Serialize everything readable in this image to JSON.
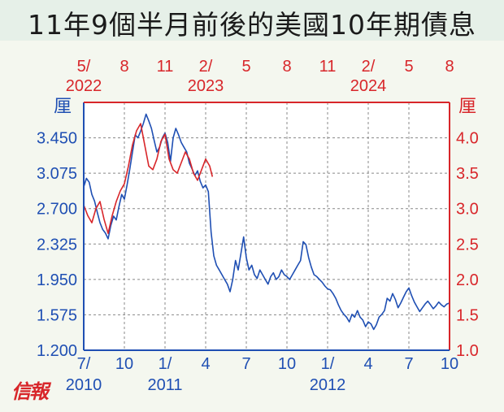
{
  "title": "11年9個半月前後的美國10年期債息",
  "logo_text": "信報",
  "colors": {
    "blue": "#1f4fb3",
    "red": "#d8262a",
    "grid": "#888888"
  },
  "chart_data": {
    "type": "line",
    "left_axis": {
      "unit_label": "厘",
      "ticks": [
        "3.450",
        "3.075",
        "2.700",
        "2.325",
        "1.950",
        "1.575",
        "1.200"
      ],
      "range": [
        1.2,
        3.825
      ]
    },
    "right_axis": {
      "unit_label": "厘",
      "ticks": [
        "4.0",
        "3.5",
        "3.0",
        "2.5",
        "2.0",
        "1.5",
        "1.0"
      ],
      "range": [
        1.0,
        4.5
      ]
    },
    "bottom_axis": {
      "ticks": [
        "7/",
        "10",
        "1/",
        "4",
        "7",
        "10",
        "1/",
        "4",
        "7",
        "10"
      ],
      "sublabels": [
        "2010",
        "2011",
        "2012"
      ]
    },
    "top_axis": {
      "ticks": [
        "5/",
        "8",
        "11",
        "2/",
        "5",
        "8",
        "11",
        "2/",
        "5",
        "8"
      ],
      "sublabels": [
        "2022",
        "2023",
        "2024"
      ]
    },
    "series": [
      {
        "color": "#1f4fb3",
        "axis": "left",
        "x": [
          0,
          0.2,
          0.4,
          0.6,
          0.8,
          1.0,
          1.2,
          1.4,
          1.6,
          1.8,
          2.0,
          2.2,
          2.4,
          2.6,
          2.8,
          3.0,
          3.2,
          3.4,
          3.6,
          3.8,
          4.0,
          4.2,
          4.4,
          4.6,
          4.8,
          5.0,
          5.2,
          5.4,
          5.6,
          5.8,
          6.0,
          6.2,
          6.4,
          6.6,
          6.8,
          7.0,
          7.2,
          7.4,
          7.6,
          7.8,
          8.0,
          8.2,
          8.4,
          8.6,
          8.8,
          9.0,
          9.2,
          9.4,
          9.6,
          9.8,
          10.0,
          10.2,
          10.4,
          10.6,
          10.8,
          11.0,
          11.2,
          11.4,
          11.6,
          11.8,
          12.0,
          12.2,
          12.4,
          12.6,
          12.8,
          13.0,
          13.2,
          13.4,
          13.6,
          13.8,
          14.0,
          14.2,
          14.4,
          14.6,
          14.8,
          15.0,
          15.2,
          15.4,
          15.6,
          15.8,
          16.0,
          16.2,
          16.4,
          16.6,
          16.8,
          17.0,
          17.2,
          17.4,
          17.6,
          17.8,
          18.0,
          18.2,
          18.4,
          18.6,
          18.8,
          19.0,
          19.2,
          19.4,
          19.6,
          19.8,
          20.0,
          20.2,
          20.4,
          20.6,
          20.8,
          21.0,
          21.2,
          21.4,
          21.6,
          21.8,
          22.0,
          22.2,
          22.4,
          22.6,
          22.8,
          23.0,
          23.2,
          23.4,
          23.6,
          23.8,
          24.0,
          24.2,
          24.4,
          24.6,
          24.8,
          25.0,
          25.2,
          25.4,
          25.6,
          25.8,
          26.0,
          26.2,
          26.4,
          26.6,
          26.8,
          27.0
        ],
        "y": [
          2.93,
          3.02,
          2.98,
          2.85,
          2.78,
          2.66,
          2.55,
          2.48,
          2.44,
          2.38,
          2.52,
          2.62,
          2.58,
          2.72,
          2.85,
          2.8,
          2.95,
          3.12,
          3.3,
          3.48,
          3.45,
          3.52,
          3.6,
          3.7,
          3.63,
          3.55,
          3.42,
          3.3,
          3.35,
          3.45,
          3.5,
          3.4,
          3.2,
          3.45,
          3.55,
          3.48,
          3.4,
          3.35,
          3.3,
          3.18,
          3.12,
          3.05,
          3.1,
          2.99,
          2.92,
          2.95,
          2.88,
          2.45,
          2.2,
          2.1,
          2.05,
          2.0,
          1.95,
          1.9,
          1.82,
          1.95,
          2.15,
          2.05,
          2.22,
          2.4,
          2.18,
          2.05,
          2.1,
          2.0,
          1.96,
          2.05,
          2.0,
          1.95,
          1.9,
          1.98,
          2.02,
          1.95,
          1.98,
          2.05,
          2.0,
          1.98,
          1.95,
          2.0,
          2.05,
          2.1,
          2.15,
          2.35,
          2.32,
          2.18,
          2.08,
          2.0,
          1.98,
          1.95,
          1.92,
          1.88,
          1.85,
          1.84,
          1.8,
          1.75,
          1.68,
          1.62,
          1.58,
          1.55,
          1.5,
          1.58,
          1.55,
          1.62,
          1.55,
          1.52,
          1.45,
          1.5,
          1.48,
          1.42,
          1.47,
          1.55,
          1.58,
          1.62,
          1.75,
          1.72,
          1.8,
          1.74,
          1.65,
          1.7,
          1.76,
          1.82,
          1.86,
          1.78,
          1.71,
          1.66,
          1.61,
          1.65,
          1.69,
          1.72,
          1.68,
          1.64,
          1.67,
          1.71,
          1.68,
          1.66,
          1.69,
          1.7
        ]
      },
      {
        "color": "#d8262a",
        "axis": "right",
        "x": [
          0,
          0.3,
          0.6,
          0.9,
          1.2,
          1.5,
          1.8,
          2.1,
          2.4,
          2.7,
          3.0,
          3.3,
          3.6,
          3.9,
          4.2,
          4.5,
          4.8,
          5.1,
          5.4,
          5.7,
          6.0,
          6.3,
          6.6,
          6.9,
          7.2,
          7.5,
          7.8,
          8.1,
          8.4,
          8.7,
          9.0,
          9.3,
          9.5
        ],
        "y": [
          3.05,
          2.9,
          2.8,
          3.0,
          3.1,
          2.85,
          2.65,
          2.9,
          3.1,
          3.25,
          3.35,
          3.6,
          3.9,
          4.1,
          4.2,
          3.9,
          3.6,
          3.55,
          3.7,
          3.95,
          4.05,
          3.7,
          3.55,
          3.5,
          3.65,
          3.8,
          3.7,
          3.5,
          3.4,
          3.55,
          3.7,
          3.6,
          3.45
        ]
      }
    ]
  }
}
